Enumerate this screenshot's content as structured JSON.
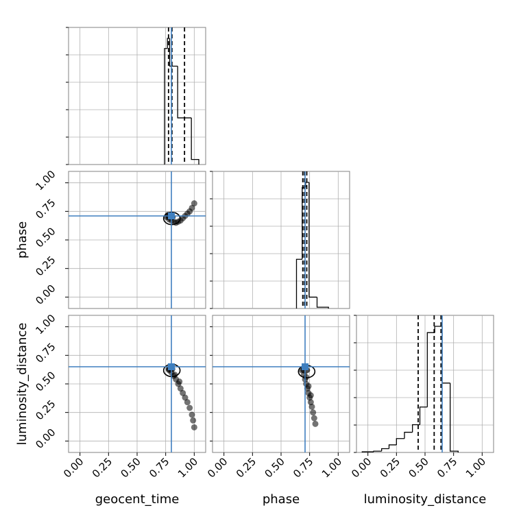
{
  "chart_data": {
    "type": "corner",
    "parameters": [
      "geocent_time",
      "phase",
      "luminosity_distance"
    ],
    "xlim": [
      -0.1,
      1.1
    ],
    "ylim": [
      -0.1,
      1.1
    ],
    "ticks": [
      0.0,
      0.25,
      0.5,
      0.75,
      1.0
    ],
    "tick_labels": [
      "0.00",
      "0.25",
      "0.50",
      "0.75",
      "1.00"
    ],
    "grid": true,
    "colors": {
      "truth": "#3f7fbf",
      "hist": "#000000",
      "quantile": "#000000",
      "samples": "#000000",
      "grid": "#b0b0b0"
    },
    "truths": {
      "geocent_time": 0.8,
      "phase": 0.71,
      "luminosity_distance": 0.65
    },
    "histograms": [
      {
        "parameter": "geocent_time",
        "bin_edges": [
          0.74,
          0.765,
          0.785,
          0.855,
          0.975,
          1.04
        ],
        "counts": [
          0.92,
          1.0,
          0.78,
          0.37,
          0.04
        ],
        "quantiles": [
          0.775,
          0.805,
          0.915
        ]
      },
      {
        "parameter": "phase",
        "bin_edges": [
          0.635,
          0.685,
          0.715,
          0.745,
          0.815,
          0.915
        ],
        "counts": [
          0.39,
          0.96,
          1.0,
          0.09,
          0.01
        ],
        "quantiles": [
          0.69,
          0.705,
          0.725
        ]
      },
      {
        "parameter": "luminosity_distance",
        "bin_edges": [
          -0.05,
          0.05,
          0.12,
          0.185,
          0.25,
          0.32,
          0.39,
          0.455,
          0.52,
          0.585,
          0.65,
          0.72,
          0.79
        ],
        "counts": [
          0.005,
          0.01,
          0.03,
          0.06,
          0.11,
          0.16,
          0.22,
          0.36,
          0.95,
          1.0,
          0.55,
          0.01
        ],
        "quantiles": [
          0.44,
          0.58,
          0.64
        ]
      }
    ],
    "scatter_panels": [
      {
        "x": "geocent_time",
        "y": "phase",
        "points": [
          [
            0.76,
            0.7
          ],
          [
            0.78,
            0.68
          ],
          [
            0.8,
            0.67
          ],
          [
            0.82,
            0.66
          ],
          [
            0.84,
            0.65
          ],
          [
            0.86,
            0.66
          ],
          [
            0.88,
            0.67
          ],
          [
            0.9,
            0.69
          ],
          [
            0.92,
            0.71
          ],
          [
            0.94,
            0.73
          ],
          [
            0.96,
            0.75
          ],
          [
            0.98,
            0.78
          ],
          [
            1.0,
            0.82
          ],
          [
            0.79,
            0.72
          ],
          [
            0.81,
            0.7
          ],
          [
            0.77,
            0.72
          ]
        ],
        "contour_center": [
          0.78,
          0.7
        ]
      },
      {
        "x": "geocent_time",
        "y": "luminosity_distance",
        "points": [
          [
            0.78,
            0.62
          ],
          [
            0.8,
            0.6
          ],
          [
            0.82,
            0.57
          ],
          [
            0.84,
            0.54
          ],
          [
            0.86,
            0.5
          ],
          [
            0.88,
            0.46
          ],
          [
            0.9,
            0.42
          ],
          [
            0.92,
            0.38
          ],
          [
            0.94,
            0.34
          ],
          [
            0.96,
            0.29
          ],
          [
            0.98,
            0.23
          ],
          [
            0.99,
            0.18
          ],
          [
            1.0,
            0.12
          ],
          [
            0.79,
            0.64
          ],
          [
            0.83,
            0.58
          ],
          [
            0.87,
            0.52
          ]
        ],
        "contour_center": [
          0.78,
          0.63
        ]
      },
      {
        "x": "phase",
        "y": "luminosity_distance",
        "points": [
          [
            0.68,
            0.62
          ],
          [
            0.7,
            0.58
          ],
          [
            0.71,
            0.54
          ],
          [
            0.72,
            0.5
          ],
          [
            0.73,
            0.46
          ],
          [
            0.74,
            0.42
          ],
          [
            0.75,
            0.38
          ],
          [
            0.76,
            0.34
          ],
          [
            0.77,
            0.3
          ],
          [
            0.78,
            0.25
          ],
          [
            0.79,
            0.2
          ],
          [
            0.8,
            0.15
          ],
          [
            0.7,
            0.64
          ],
          [
            0.72,
            0.56
          ],
          [
            0.74,
            0.48
          ],
          [
            0.76,
            0.4
          ]
        ],
        "contour_center": [
          0.7,
          0.62
        ]
      }
    ]
  }
}
